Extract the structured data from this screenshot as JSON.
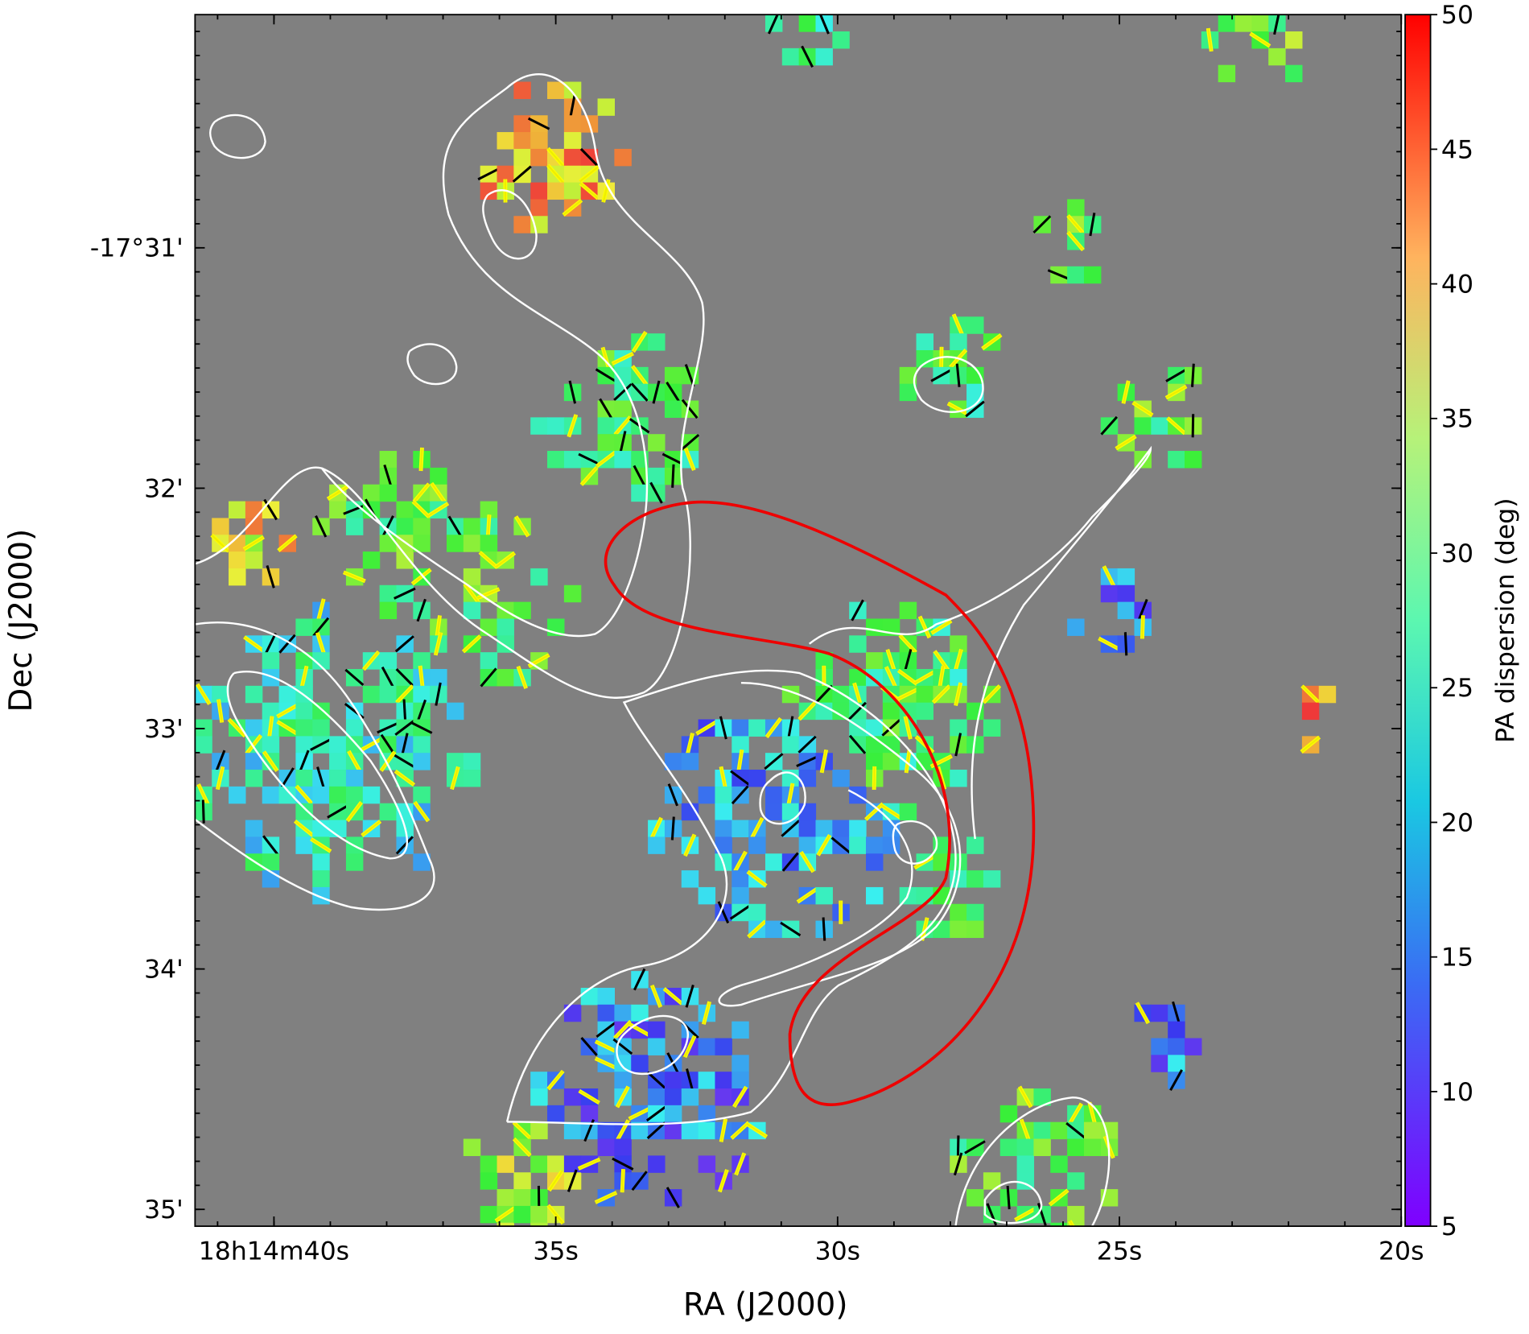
{
  "chart_data": {
    "type": "heatmap",
    "xlabel": "RA (J2000)",
    "ylabel": "Dec (J2000)",
    "xlim": [
      41.4,
      20
    ],
    "xticks": [
      {
        "value": 40,
        "label": "18h14m40s"
      },
      {
        "value": 35,
        "label": "35s"
      },
      {
        "value": 30,
        "label": "30s"
      },
      {
        "value": 25,
        "label": "25s"
      },
      {
        "value": 20,
        "label": "20s"
      }
    ],
    "ylim": [
      35.07,
      30.03
    ],
    "yticks": [
      {
        "value": 31,
        "label": "-17°31'"
      },
      {
        "value": 32,
        "label": "32'"
      },
      {
        "value": 33,
        "label": "33'"
      },
      {
        "value": 34,
        "label": "34'"
      },
      {
        "value": 35,
        "label": "35'"
      }
    ],
    "colorbar": {
      "label": "PA dispersion (deg)",
      "lim": [
        5,
        50
      ],
      "ticks": [
        5,
        10,
        15,
        20,
        25,
        30,
        35,
        40,
        45,
        50
      ]
    }
  }
}
